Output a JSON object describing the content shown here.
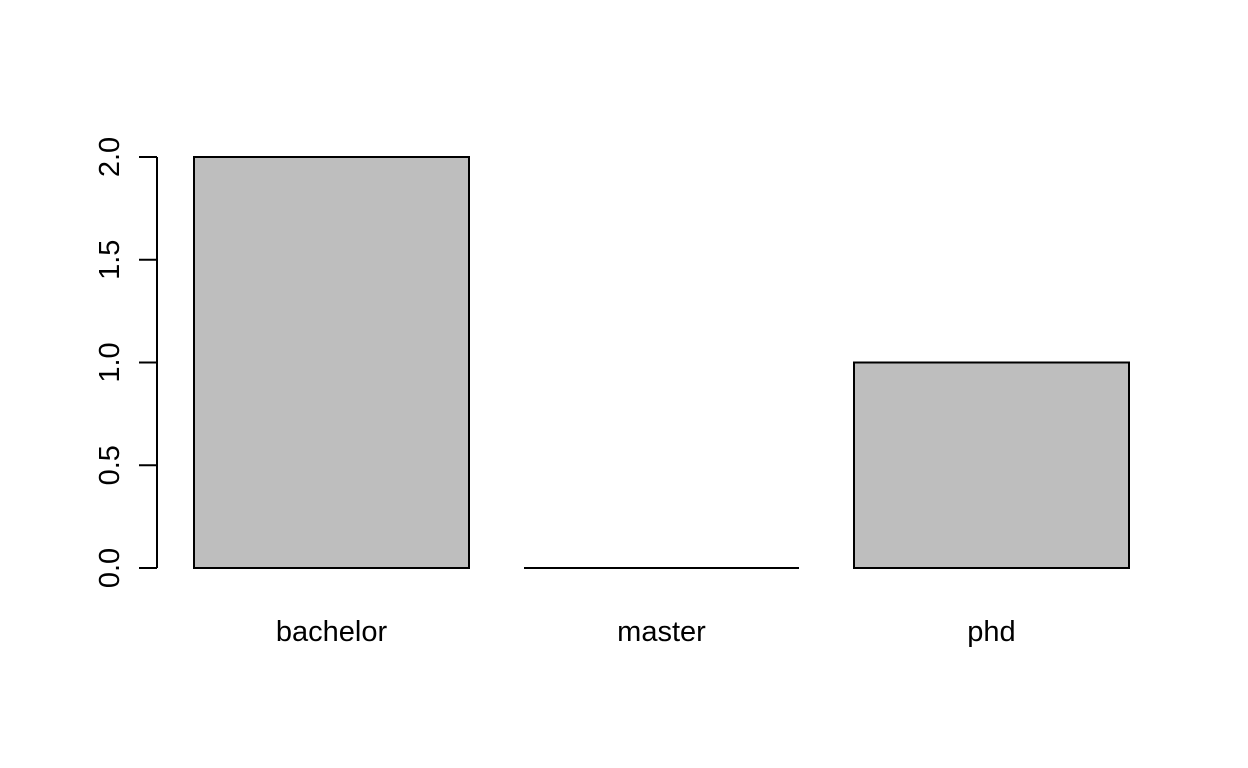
{
  "chart_data": {
    "type": "bar",
    "categories": [
      "bachelor",
      "master",
      "phd"
    ],
    "values": [
      2,
      0,
      1
    ],
    "title": "",
    "xlabel": "",
    "ylabel": "",
    "ylim": [
      0,
      2
    ],
    "yticks": [
      "0.0",
      "0.5",
      "1.0",
      "1.5",
      "2.0"
    ],
    "grid": false,
    "colors": {
      "bar_fill": "#bebebe",
      "bar_stroke": "#000000",
      "axis": "#000000"
    }
  }
}
